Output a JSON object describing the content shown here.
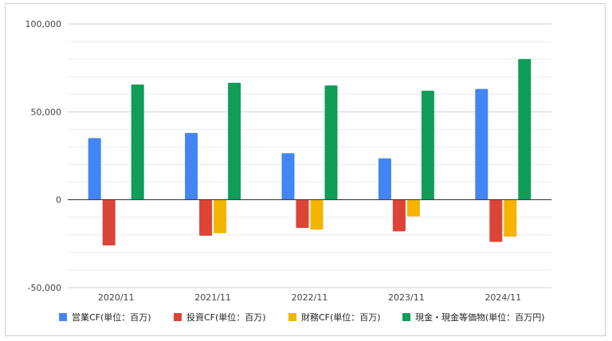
{
  "chart_data": {
    "type": "bar",
    "categories": [
      "2020/11",
      "2021/11",
      "2022/11",
      "2023/11",
      "2024/11"
    ],
    "series": [
      {
        "name": "営業CF(単位：百万)",
        "color": "#4285F4",
        "values": [
          35000,
          38000,
          26500,
          23500,
          63000
        ]
      },
      {
        "name": "投資CF(単位：百万)",
        "color": "#DB4437",
        "values": [
          -26000,
          -20500,
          -16000,
          -18000,
          -24000
        ]
      },
      {
        "name": "財務CF(単位：百万)",
        "color": "#F4B400",
        "values": [
          0,
          -19000,
          -17000,
          -9500,
          -21000
        ]
      },
      {
        "name": "現金・現金等価物(単位：百万円)",
        "color": "#0F9D58",
        "values": [
          65500,
          66500,
          65000,
          62000,
          80000
        ]
      }
    ],
    "ylim": [
      -50000,
      100000
    ],
    "yticks": [
      "100,000",
      "50,000",
      "0",
      "-50,000"
    ],
    "ytick_values": [
      100000,
      50000,
      0,
      -50000
    ],
    "grid": true,
    "legend_position": "bottom",
    "title": "",
    "xlabel": "",
    "ylabel": ""
  }
}
